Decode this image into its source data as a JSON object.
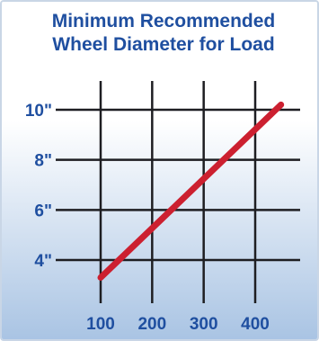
{
  "chart_data": {
    "type": "line",
    "title": "Minimum Recommended",
    "subtitle": "Wheel Diameter for Load",
    "xlabel": "",
    "ylabel": "",
    "x_ticks": [
      100,
      200,
      300,
      400
    ],
    "x_tick_labels": [
      "100",
      "200",
      "300",
      "400"
    ],
    "y_ticks": [
      4,
      6,
      8,
      10
    ],
    "y_tick_labels": [
      "4\"",
      "6\"",
      "8\"",
      "10\""
    ],
    "xlim": [
      100,
      400
    ],
    "ylim": [
      4,
      10
    ],
    "grid": true,
    "series": [
      {
        "x": [
          100,
          450
        ],
        "y": [
          3.3,
          10.2
        ]
      }
    ]
  },
  "colors": {
    "title": "#1f4fa0",
    "tick_label": "#1f4fa0",
    "grid": "#1e1e22",
    "line": "#cc2030",
    "background_top": "#ffffff",
    "background_bottom": "#a8c3e3"
  }
}
